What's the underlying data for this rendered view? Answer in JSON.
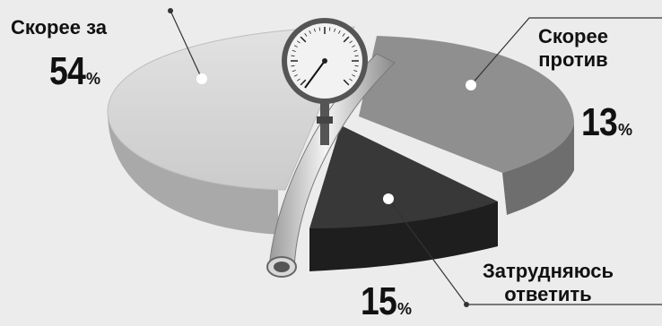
{
  "chart_data": {
    "type": "pie",
    "slices": [
      {
        "label": "Скорее за",
        "value": 54,
        "unit": "%",
        "color": "#cfcfcf"
      },
      {
        "label": "Скорее против",
        "value": 13,
        "unit": "%",
        "color": "#8f8f8f"
      },
      {
        "label": "Затрудняюсь ответить",
        "value": 15,
        "unit": "%",
        "color": "#2f2f2f"
      }
    ],
    "legend": "none",
    "grid": false
  },
  "labels": {
    "za": "Скорее за",
    "protiv_1": "Скорее",
    "protiv_2": "против",
    "zatr_1": "Затрудняюсь",
    "zatr_2": "ответить"
  },
  "values": {
    "za": "54",
    "protiv": "13",
    "zatr": "15",
    "sign": "%"
  }
}
